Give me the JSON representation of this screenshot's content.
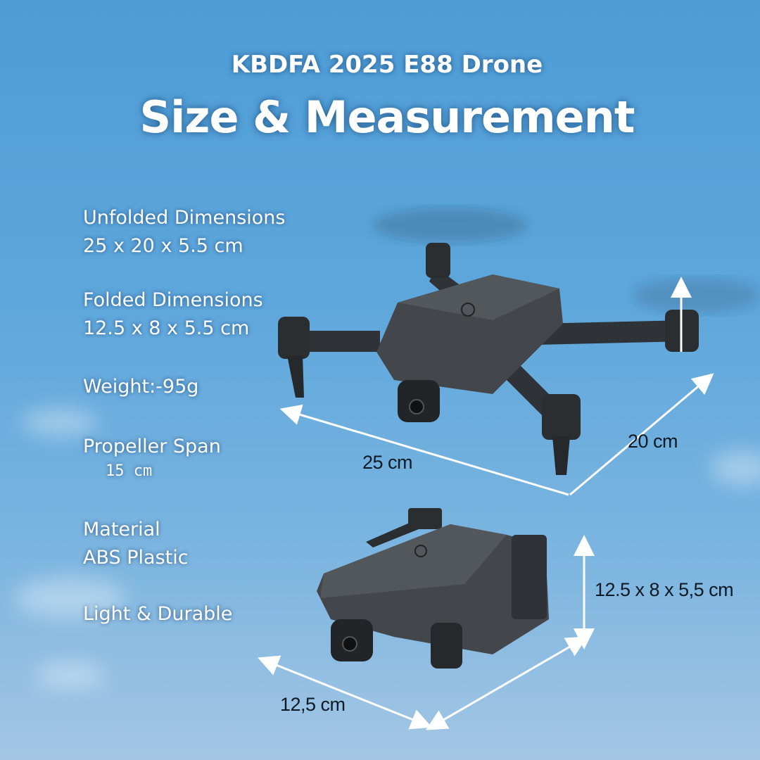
{
  "header": {
    "subtitle": "KBDFA 2025 E88 Drone",
    "title": "Size & Measurement"
  },
  "specs": [
    {
      "label": "Unfolded Dimensions",
      "value": "25 x 20 x 5.5 cm"
    },
    {
      "label": "Folded Dimensions",
      "value": "12.5 x 8 x 5.5 cm"
    },
    {
      "label": "Weight:-95g"
    },
    {
      "label": "Propeller Span",
      "value": "15 cm"
    },
    {
      "label": "Material",
      "value": "ABS Plastic"
    },
    {
      "label": "Light & Durable"
    }
  ],
  "dimension_labels": {
    "unfolded_length": "25 cm",
    "unfolded_width": "20 cm",
    "folded_size": "12.5 x 8 x 5,5 cm",
    "folded_length": "12,5 cm"
  },
  "colors": {
    "sky_top": "#4d9cd6",
    "sky_bottom": "#a4c6e4",
    "drone": "#3b3e42",
    "text": "#ffffff"
  }
}
